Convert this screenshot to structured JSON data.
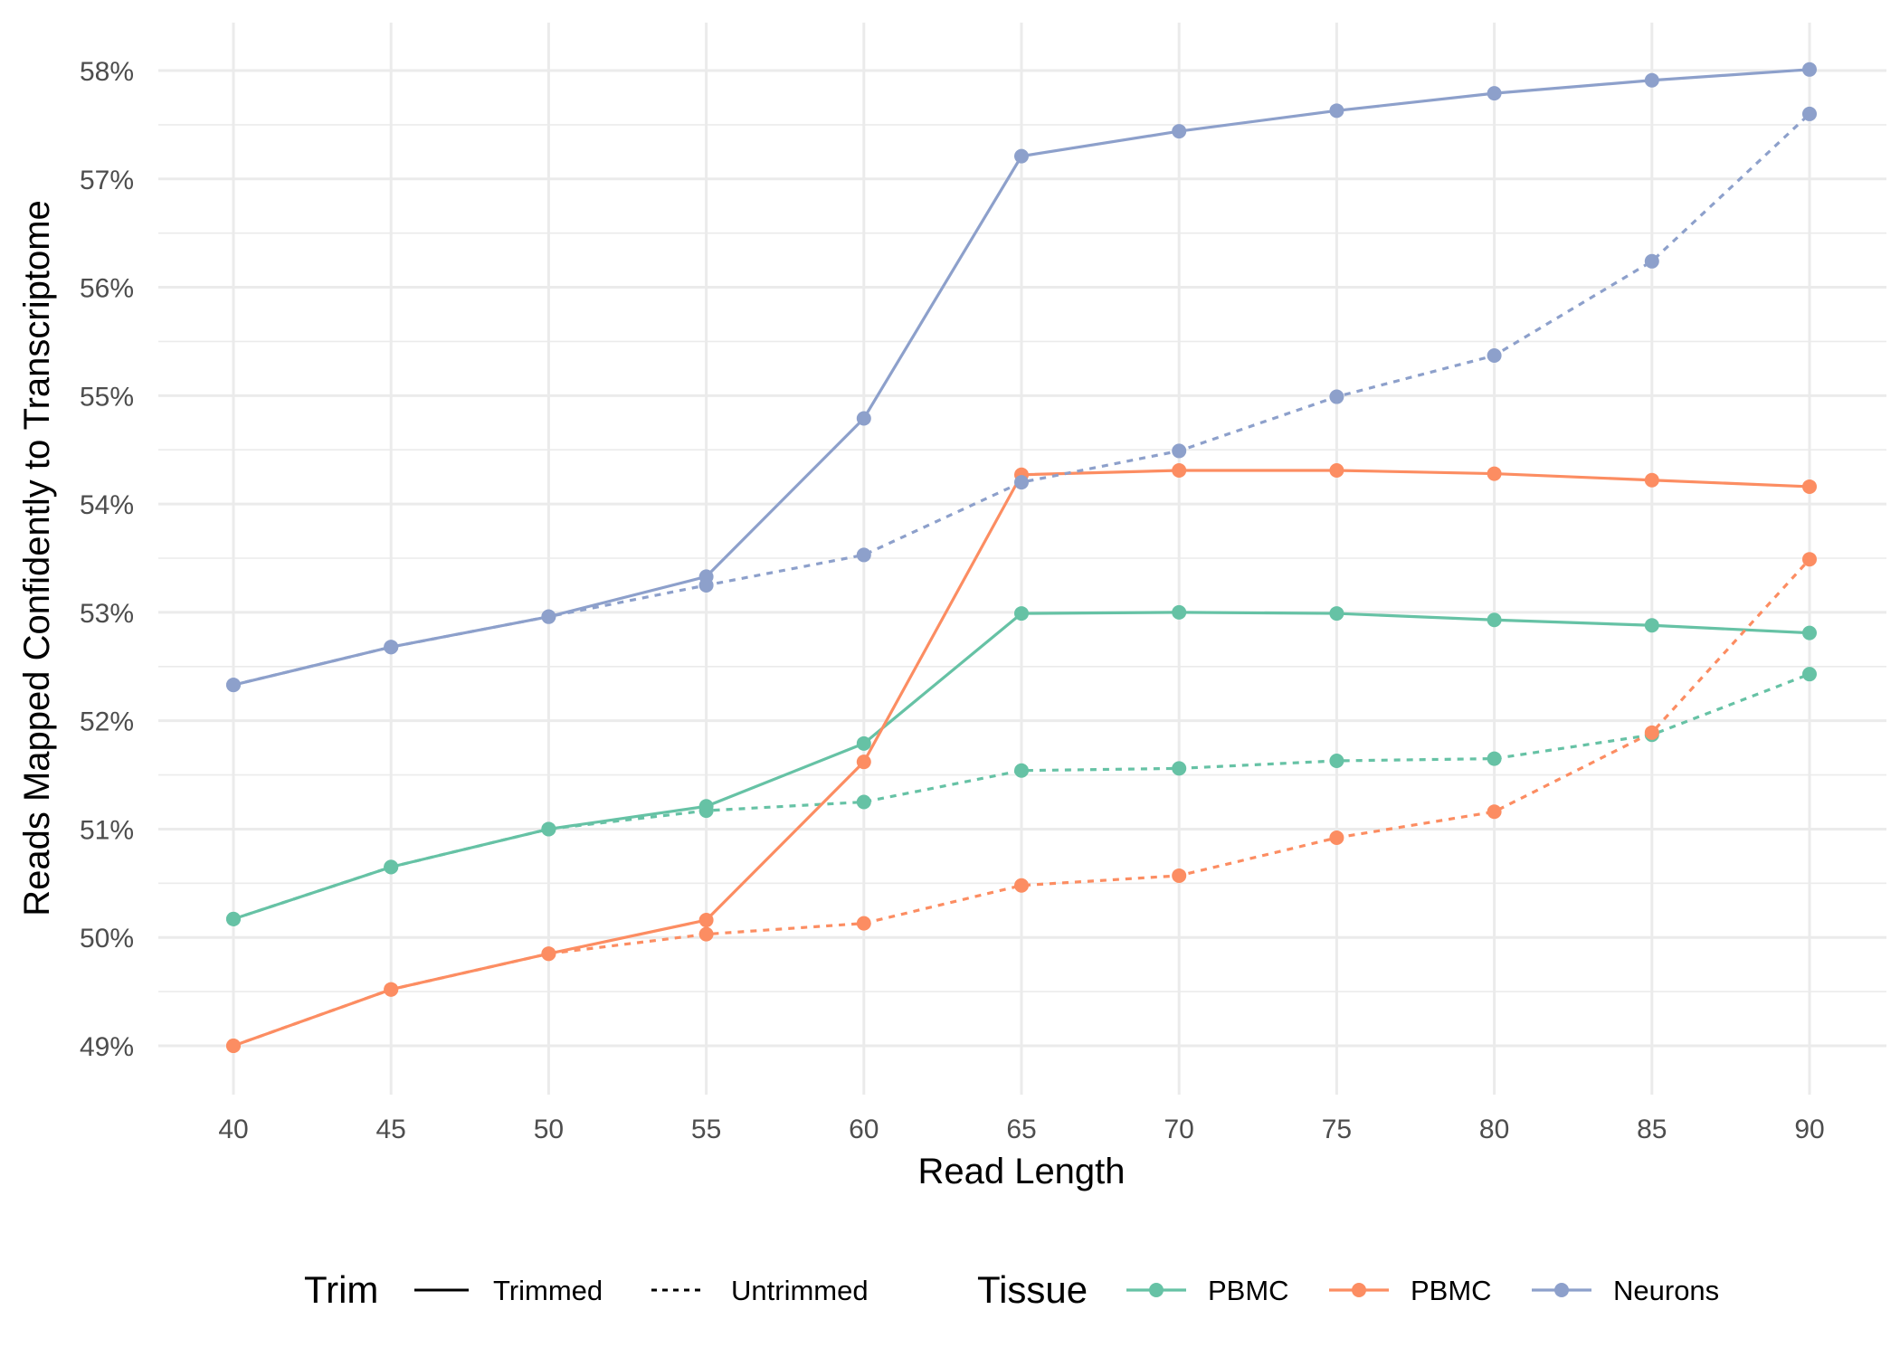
{
  "chart_data": {
    "type": "line",
    "title": "",
    "xlabel": "Read Length",
    "ylabel": "Reads Mapped Confidently to Transcriptome",
    "x": [
      40,
      45,
      50,
      55,
      60,
      65,
      70,
      75,
      80,
      85,
      90
    ],
    "xlim": [
      40,
      90
    ],
    "ylim": [
      49,
      58
    ],
    "x_ticks": [
      "40",
      "45",
      "50",
      "55",
      "60",
      "65",
      "70",
      "75",
      "80",
      "85",
      "90"
    ],
    "y_ticks": [
      "49%",
      "50%",
      "51%",
      "52%",
      "53%",
      "54%",
      "55%",
      "56%",
      "57%",
      "58%"
    ],
    "y_tick_values": [
      49,
      50,
      51,
      52,
      53,
      54,
      55,
      56,
      57,
      58
    ],
    "grid": true,
    "legend_placement": "bottom",
    "legend": {
      "trim_title": "Trim",
      "trim_items": [
        "Trimmed",
        "Untrimmed"
      ],
      "tissue_title": "Tissue",
      "tissue_items": [
        {
          "label": "PBMC",
          "color": "#66c2a5"
        },
        {
          "label": "PBMC",
          "color": "#fc8d62"
        },
        {
          "label": "Neurons",
          "color": "#8da0cb"
        }
      ]
    },
    "series": [
      {
        "name": "PBMC (green) Trimmed",
        "tissue": 0,
        "trim": "Trimmed",
        "color": "#66c2a5",
        "values": [
          50.17,
          50.65,
          51.0,
          51.21,
          51.79,
          52.99,
          53.0,
          52.99,
          52.93,
          52.88,
          52.81
        ]
      },
      {
        "name": "PBMC (green) Untrimmed",
        "tissue": 0,
        "trim": "Untrimmed",
        "color": "#66c2a5",
        "values": [
          50.17,
          50.65,
          51.0,
          51.17,
          51.25,
          51.54,
          51.56,
          51.63,
          51.65,
          51.87,
          52.43
        ]
      },
      {
        "name": "PBMC (orange) Trimmed",
        "tissue": 1,
        "trim": "Trimmed",
        "color": "#fc8d62",
        "values": [
          49.0,
          49.52,
          49.85,
          50.16,
          51.62,
          54.27,
          54.31,
          54.31,
          54.28,
          54.22,
          54.16
        ]
      },
      {
        "name": "PBMC (orange) Untrimmed",
        "tissue": 1,
        "trim": "Untrimmed",
        "color": "#fc8d62",
        "values": [
          49.0,
          49.52,
          49.85,
          50.03,
          50.13,
          50.48,
          50.57,
          50.92,
          51.16,
          51.89,
          53.49
        ]
      },
      {
        "name": "Neurons Trimmed",
        "tissue": 2,
        "trim": "Trimmed",
        "color": "#8da0cb",
        "values": [
          52.33,
          52.68,
          52.96,
          53.33,
          54.79,
          57.21,
          57.44,
          57.63,
          57.79,
          57.91,
          58.01
        ]
      },
      {
        "name": "Neurons Untrimmed",
        "tissue": 2,
        "trim": "Untrimmed",
        "color": "#8da0cb",
        "values": [
          52.33,
          52.68,
          52.96,
          53.25,
          53.53,
          54.2,
          54.49,
          54.99,
          55.37,
          56.24,
          57.6
        ]
      }
    ]
  }
}
